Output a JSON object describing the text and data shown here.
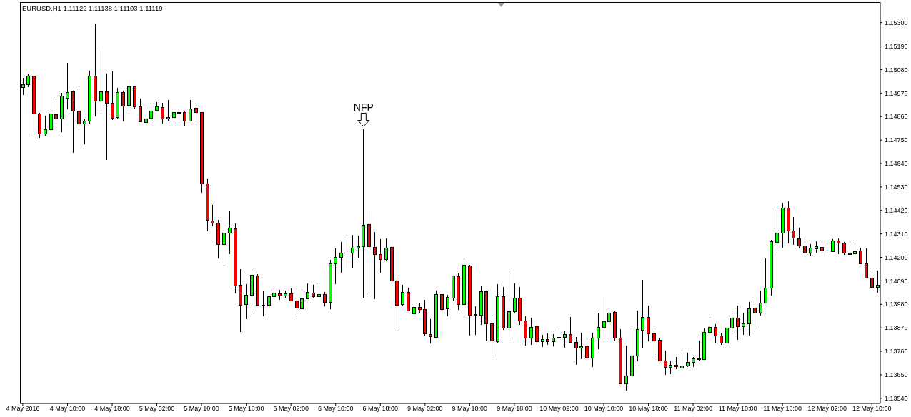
{
  "chart_data": {
    "type": "candlestick",
    "title": "EURUSD,H1 1.11122 1.11138 1.11103 1.11119",
    "categories": [
      "4 May 2016",
      null,
      null,
      null,
      null,
      null,
      null,
      null,
      "4 May 10:00",
      null,
      null,
      null,
      null,
      null,
      null,
      null,
      "4 May 18:00",
      null,
      null,
      null,
      null,
      null,
      null,
      null,
      "5 May 02:00",
      null,
      null,
      null,
      null,
      null,
      null,
      null,
      "5 May 10:00",
      null,
      null,
      null,
      null,
      null,
      null,
      null,
      "5 May 18:00",
      null,
      null,
      null,
      null,
      null,
      null,
      null,
      "6 May 02:00",
      null,
      null,
      null,
      null,
      null,
      null,
      null,
      "6 May 10:00",
      null,
      null,
      null,
      null,
      null,
      null,
      null,
      "6 May 18:00",
      null,
      null,
      null,
      null,
      null,
      null,
      null,
      "9 May 02:00",
      null,
      null,
      null,
      null,
      null,
      null,
      null,
      "9 May 10:00",
      null,
      null,
      null,
      null,
      null,
      null,
      null,
      "9 May 18:00",
      null,
      null,
      null,
      null,
      null,
      null,
      null,
      "10 May 02:00",
      null,
      null,
      null,
      null,
      null,
      null,
      null,
      "10 May 10:00",
      null,
      null,
      null,
      null,
      null,
      null,
      null,
      "10 May 18:00",
      null,
      null,
      null,
      null,
      null,
      null,
      null,
      "11 May 02:00",
      null,
      null,
      null,
      null,
      null,
      null,
      null,
      "11 May 10:00",
      null,
      null,
      null,
      null,
      null,
      null,
      null,
      "11 May 18:00",
      null,
      null,
      null,
      null,
      null,
      null,
      null,
      "12 May 02:00",
      null,
      null,
      null,
      null,
      null,
      null,
      null,
      "12 May 10:00",
      null
    ],
    "ohlc": [
      [
        1.14997,
        1.1504,
        1.14962,
        1.1501
      ],
      [
        1.1501,
        1.15057,
        1.14999,
        1.1505
      ],
      [
        1.1505,
        1.15085,
        1.14775,
        1.14873
      ],
      [
        1.14873,
        1.14876,
        1.14761,
        1.14779
      ],
      [
        1.14779,
        1.14864,
        1.14771,
        1.14799
      ],
      [
        1.14799,
        1.14884,
        1.14795,
        1.14873
      ],
      [
        1.1487,
        1.14931,
        1.14825,
        1.1485
      ],
      [
        1.1485,
        1.14971,
        1.14788,
        1.14957
      ],
      [
        1.14947,
        1.15111,
        1.14895,
        1.14973
      ],
      [
        1.14977,
        1.1498,
        1.14691,
        1.14886
      ],
      [
        1.14886,
        1.15,
        1.14798,
        1.14826
      ],
      [
        1.14826,
        1.14846,
        1.14731,
        1.1484
      ],
      [
        1.1484,
        1.15075,
        1.14828,
        1.1505
      ],
      [
        1.1505,
        1.15295,
        1.14862,
        1.14933
      ],
      [
        1.14933,
        1.15182,
        1.14875,
        1.14977
      ],
      [
        1.14977,
        1.15061,
        1.14658,
        1.14923
      ],
      [
        1.14923,
        1.15071,
        1.14845,
        1.14853
      ],
      [
        1.14856,
        1.14993,
        1.14852,
        1.14973
      ],
      [
        1.14973,
        1.1498,
        1.14838,
        1.1491
      ],
      [
        1.14913,
        1.1503,
        1.14885,
        1.15
      ],
      [
        1.15,
        1.15003,
        1.14898,
        1.14906
      ],
      [
        1.14906,
        1.14943,
        1.14836,
        1.14836
      ],
      [
        1.14833,
        1.14917,
        1.14833,
        1.1485
      ],
      [
        1.14853,
        1.14903,
        1.14841,
        1.14886
      ],
      [
        1.1489,
        1.14927,
        1.1489,
        1.14906
      ],
      [
        1.14903,
        1.14924,
        1.14828,
        1.1485
      ],
      [
        1.1485,
        1.14937,
        1.14841,
        1.14856
      ],
      [
        1.14856,
        1.14887,
        1.14828,
        1.1488
      ],
      [
        1.14878,
        1.14881,
        1.14841,
        1.14878
      ],
      [
        1.1488,
        1.14883,
        1.14818,
        1.14838
      ],
      [
        1.14838,
        1.14937,
        1.14838,
        1.14896
      ],
      [
        1.149,
        1.14913,
        1.14821,
        1.1488
      ],
      [
        1.1488,
        1.1488,
        1.14504,
        1.14545
      ],
      [
        1.14545,
        1.14569,
        1.14323,
        1.14373
      ],
      [
        1.14371,
        1.14446,
        1.14346,
        1.14361
      ],
      [
        1.14361,
        1.14375,
        1.14196,
        1.14261
      ],
      [
        1.14261,
        1.14321,
        1.14173,
        1.14314
      ],
      [
        1.14314,
        1.14416,
        1.14216,
        1.14338
      ],
      [
        1.14334,
        1.14358,
        1.14032,
        1.14067
      ],
      [
        1.1407,
        1.14145,
        1.13851,
        1.13977
      ],
      [
        1.1398,
        1.14075,
        1.13912,
        1.14023
      ],
      [
        1.14023,
        1.14145,
        1.13942,
        1.14117
      ],
      [
        1.14114,
        1.1412,
        1.13973,
        1.13977
      ],
      [
        1.13975,
        1.1404,
        1.13925,
        1.13975
      ],
      [
        1.13977,
        1.14033,
        1.13962,
        1.14017
      ],
      [
        1.14017,
        1.14054,
        1.14005,
        1.14033
      ],
      [
        1.1403,
        1.14047,
        1.14002,
        1.1402
      ],
      [
        1.1402,
        1.14043,
        1.1401,
        1.1403
      ],
      [
        1.1403,
        1.14054,
        1.13993,
        1.13997
      ],
      [
        1.13997,
        1.14054,
        1.1392,
        1.13963
      ],
      [
        1.1396,
        1.1405,
        1.13953,
        1.14007
      ],
      [
        1.14007,
        1.14077,
        1.14003,
        1.14037
      ],
      [
        1.14033,
        1.14071,
        1.14012,
        1.14017
      ],
      [
        1.14017,
        1.1409,
        1.14017,
        1.14027
      ],
      [
        1.14027,
        1.14037,
        1.13972,
        1.1399
      ],
      [
        1.1399,
        1.14187,
        1.13959,
        1.14171
      ],
      [
        1.14171,
        1.14241,
        1.14076,
        1.14201
      ],
      [
        1.14201,
        1.14271,
        1.14129,
        1.14221
      ],
      [
        1.14221,
        1.14304,
        1.14149,
        1.14221
      ],
      [
        1.14221,
        1.14304,
        1.14149,
        1.14244
      ],
      [
        1.14244,
        1.14301,
        1.14199,
        1.14251
      ],
      [
        1.14251,
        1.14799,
        1.14012,
        1.14351
      ],
      [
        1.14355,
        1.14416,
        1.14025,
        1.14251
      ],
      [
        1.14247,
        1.14318,
        1.14005,
        1.14214
      ],
      [
        1.14214,
        1.14284,
        1.14129,
        1.14191
      ],
      [
        1.14191,
        1.14288,
        1.14186,
        1.14244
      ],
      [
        1.14247,
        1.14281,
        1.1408,
        1.1409
      ],
      [
        1.1409,
        1.14104,
        1.13858,
        1.13977
      ],
      [
        1.1398,
        1.1407,
        1.1397,
        1.14037
      ],
      [
        1.14037,
        1.14057,
        1.1395,
        1.1395
      ],
      [
        1.13937,
        1.13977,
        1.1392,
        1.13967
      ],
      [
        1.13967,
        1.13987,
        1.13937,
        1.13957
      ],
      [
        1.13957,
        1.14,
        1.13833,
        1.13843
      ],
      [
        1.13839,
        1.1391,
        1.13796,
        1.13829
      ],
      [
        1.13826,
        1.14043,
        1.13826,
        1.14027
      ],
      [
        1.14027,
        1.14027,
        1.13937,
        1.13957
      ],
      [
        1.1396,
        1.14023,
        1.13923,
        1.14013
      ],
      [
        1.1401,
        1.14114,
        1.13999,
        1.14114
      ],
      [
        1.1411,
        1.14125,
        1.13955,
        1.1398
      ],
      [
        1.1398,
        1.14195,
        1.13918,
        1.14164
      ],
      [
        1.14161,
        1.14164,
        1.13835,
        1.1393
      ],
      [
        1.1393,
        1.13971,
        1.13838,
        1.1393
      ],
      [
        1.1393,
        1.14068,
        1.13885,
        1.1404
      ],
      [
        1.1404,
        1.14043,
        1.13808,
        1.1389
      ],
      [
        1.1389,
        1.1393,
        1.13741,
        1.13809
      ],
      [
        1.13806,
        1.14074,
        1.13799,
        1.14017
      ],
      [
        1.14017,
        1.1406,
        1.13862,
        1.1387
      ],
      [
        1.1387,
        1.14135,
        1.13821,
        1.13947
      ],
      [
        1.13947,
        1.14077,
        1.13937,
        1.1401
      ],
      [
        1.1401,
        1.1406,
        1.13885,
        1.13903
      ],
      [
        1.13903,
        1.13923,
        1.13788,
        1.13823
      ],
      [
        1.13823,
        1.13916,
        1.13791,
        1.13873
      ],
      [
        1.13876,
        1.13896,
        1.13791,
        1.13806
      ],
      [
        1.13806,
        1.13836,
        1.13781,
        1.13816
      ],
      [
        1.13816,
        1.13843,
        1.13791,
        1.13806
      ],
      [
        1.13806,
        1.13839,
        1.13785,
        1.13823
      ],
      [
        1.13826,
        1.13866,
        1.13818,
        1.13826
      ],
      [
        1.13826,
        1.13853,
        1.13778,
        1.13839
      ],
      [
        1.13839,
        1.1392,
        1.13803,
        1.13803
      ],
      [
        1.13803,
        1.13826,
        1.13698,
        1.13776
      ],
      [
        1.13776,
        1.13846,
        1.13724,
        1.13783
      ],
      [
        1.13783,
        1.13819,
        1.13724,
        1.13729
      ],
      [
        1.13729,
        1.13846,
        1.13688,
        1.13823
      ],
      [
        1.13823,
        1.13937,
        1.13771,
        1.13873
      ],
      [
        1.13873,
        1.14013,
        1.13805,
        1.139
      ],
      [
        1.139,
        1.13957,
        1.13818,
        1.1394
      ],
      [
        1.13943,
        1.13947,
        1.13811,
        1.13821
      ],
      [
        1.13823,
        1.13863,
        1.13609,
        1.13609
      ],
      [
        1.13609,
        1.13786,
        1.13577,
        1.13644
      ],
      [
        1.13645,
        1.13866,
        1.13642,
        1.13739
      ],
      [
        1.13739,
        1.1395,
        1.13712,
        1.13863
      ],
      [
        1.1386,
        1.14095,
        1.13773,
        1.1392
      ],
      [
        1.1392,
        1.13973,
        1.13806,
        1.13843
      ],
      [
        1.13843,
        1.13866,
        1.13742,
        1.13809
      ],
      [
        1.13813,
        1.13823,
        1.13716,
        1.13716
      ],
      [
        1.13716,
        1.13763,
        1.13649,
        1.13686
      ],
      [
        1.13686,
        1.13712,
        1.13652,
        1.13696
      ],
      [
        1.13696,
        1.13732,
        1.13676,
        1.13689
      ],
      [
        1.13682,
        1.13753,
        1.13679,
        1.13692
      ],
      [
        1.13692,
        1.13753,
        1.13686,
        1.13709
      ],
      [
        1.13709,
        1.13732,
        1.13686,
        1.13726
      ],
      [
        1.13724,
        1.13809,
        1.13716,
        1.13724
      ],
      [
        1.13722,
        1.13866,
        1.13719,
        1.1385
      ],
      [
        1.1385,
        1.1391,
        1.13833,
        1.13873
      ],
      [
        1.13873,
        1.13886,
        1.13799,
        1.13833
      ],
      [
        1.13833,
        1.13846,
        1.13789,
        1.13799
      ],
      [
        1.13799,
        1.13873,
        1.13796,
        1.1387
      ],
      [
        1.1387,
        1.13937,
        1.13851,
        1.13916
      ],
      [
        1.13916,
        1.13973,
        1.13815,
        1.13876
      ],
      [
        1.13876,
        1.1394,
        1.13838,
        1.1389
      ],
      [
        1.1389,
        1.1399,
        1.13835,
        1.1396
      ],
      [
        1.13963,
        1.13973,
        1.13873,
        1.1394
      ],
      [
        1.1394,
        1.14043,
        1.13926,
        1.13987
      ],
      [
        1.13987,
        1.14194,
        1.13987,
        1.14057
      ],
      [
        1.14057,
        1.14281,
        1.14022,
        1.14274
      ],
      [
        1.14271,
        1.14435,
        1.14217,
        1.14314
      ],
      [
        1.14314,
        1.14455,
        1.14244,
        1.14431
      ],
      [
        1.14431,
        1.14462,
        1.14264,
        1.14324
      ],
      [
        1.14324,
        1.14388,
        1.14258,
        1.14291
      ],
      [
        1.14288,
        1.14338,
        1.14241,
        1.14254
      ],
      [
        1.14254,
        1.14274,
        1.14207,
        1.14221
      ],
      [
        1.14221,
        1.14261,
        1.14207,
        1.14244
      ],
      [
        1.14241,
        1.14274,
        1.14221,
        1.14251
      ],
      [
        1.14247,
        1.14261,
        1.14217,
        1.14231
      ],
      [
        1.14231,
        1.14264,
        1.14217,
        1.14231
      ],
      [
        1.14227,
        1.14284,
        1.14227,
        1.14278
      ],
      [
        1.14278,
        1.14288,
        1.14214,
        1.14268
      ],
      [
        1.14268,
        1.14271,
        1.14211,
        1.14221
      ],
      [
        1.14221,
        1.14274,
        1.14214,
        1.14214
      ],
      [
        1.14217,
        1.14271,
        1.14211,
        1.14227
      ],
      [
        1.14231,
        1.14244,
        1.14171,
        1.14171
      ],
      [
        1.14171,
        1.14241,
        1.14104,
        1.14104
      ],
      [
        1.14104,
        1.14137,
        1.14047,
        1.1406
      ],
      [
        1.1406,
        1.14137,
        1.14033,
        1.1407
      ]
    ],
    "colors": [
      "#00ff00",
      "#00ff00",
      "#ff0000",
      "#ff0000",
      "#00ff00",
      "#00ff00",
      "#ff0000",
      "#00ff00",
      "#00ff00",
      "#ff0000",
      "#ff0000",
      "#00ff00",
      "#00ff00",
      "#ff0000",
      "#00ff00",
      "#ff0000",
      "#ff0000",
      "#00ff00",
      "#ff0000",
      "#00ff00",
      "#ff0000",
      "#ff0000",
      "#00ff00",
      "#00ff00",
      "#00ff00",
      "#ff0000",
      "#00ff00",
      "#00ff00",
      "#000000",
      "#ff0000",
      "#00ff00",
      "#ff0000",
      "#ff0000",
      "#ff0000",
      "#ff0000",
      "#ff0000",
      "#00ff00",
      "#00ff00",
      "#ff0000",
      "#ff0000",
      "#00ff00",
      "#00ff00",
      "#ff0000",
      "#000000",
      "#00ff00",
      "#00ff00",
      "#ff0000",
      "#00ff00",
      "#ff0000",
      "#ff0000",
      "#00ff00",
      "#00ff00",
      "#ff0000",
      "#00ff00",
      "#ff0000",
      "#00ff00",
      "#00ff00",
      "#00ff00",
      "#000000",
      "#00ff00",
      "#00ff00",
      "#00ff00",
      "#ff0000",
      "#ff0000",
      "#ff0000",
      "#00ff00",
      "#ff0000",
      "#ff0000",
      "#00ff00",
      "#ff0000",
      "#00ff00",
      "#ff0000",
      "#ff0000",
      "#ff0000",
      "#00ff00",
      "#ff0000",
      "#00ff00",
      "#00ff00",
      "#ff0000",
      "#00ff00",
      "#ff0000",
      "#000000",
      "#00ff00",
      "#ff0000",
      "#ff0000",
      "#00ff00",
      "#ff0000",
      "#00ff00",
      "#00ff00",
      "#ff0000",
      "#ff0000",
      "#00ff00",
      "#ff0000",
      "#00ff00",
      "#ff0000",
      "#00ff00",
      "#000000",
      "#00ff00",
      "#ff0000",
      "#ff0000",
      "#00ff00",
      "#ff0000",
      "#00ff00",
      "#00ff00",
      "#00ff00",
      "#00ff00",
      "#ff0000",
      "#ff0000",
      "#00ff00",
      "#00ff00",
      "#00ff00",
      "#00ff00",
      "#ff0000",
      "#ff0000",
      "#ff0000",
      "#ff0000",
      "#00ff00",
      "#ff0000",
      "#00ff00",
      "#00ff00",
      "#00ff00",
      "#000000",
      "#00ff00",
      "#00ff00",
      "#ff0000",
      "#ff0000",
      "#00ff00",
      "#00ff00",
      "#ff0000",
      "#00ff00",
      "#00ff00",
      "#ff0000",
      "#00ff00",
      "#00ff00",
      "#00ff00",
      "#00ff00",
      "#00ff00",
      "#ff0000",
      "#ff0000",
      "#ff0000",
      "#ff0000",
      "#00ff00",
      "#00ff00",
      "#ff0000",
      "#000000",
      "#00ff00",
      "#ff0000",
      "#ff0000",
      "#ff0000",
      "#00ff00",
      "#ff0000",
      "#ff0000",
      "#ff0000",
      "#00ff00"
    ],
    "ylim": [
      1.13516,
      1.15396
    ],
    "yticks": [
      {
        "value": 1.1354,
        "label": "1.13540"
      },
      {
        "value": 1.1365,
        "label": "1.13650"
      },
      {
        "value": 1.1376,
        "label": "1.13760"
      },
      {
        "value": 1.1387,
        "label": "1.13870"
      },
      {
        "value": 1.1398,
        "label": "1.13980"
      },
      {
        "value": 1.1409,
        "label": "1.14090"
      },
      {
        "value": 1.142,
        "label": "1.14200"
      },
      {
        "value": 1.1431,
        "label": "1.14310"
      },
      {
        "value": 1.1442,
        "label": "1.14420"
      },
      {
        "value": 1.1453,
        "label": "1.14530"
      },
      {
        "value": 1.1464,
        "label": "1.14640"
      },
      {
        "value": 1.1475,
        "label": "1.14750"
      },
      {
        "value": 1.1486,
        "label": "1.14860"
      },
      {
        "value": 1.1497,
        "label": "1.14970"
      },
      {
        "value": 1.1508,
        "label": "1.15080"
      },
      {
        "value": 1.1519,
        "label": "1.15190"
      },
      {
        "value": 1.153,
        "label": "1.15300"
      }
    ],
    "annotations": [
      {
        "text": "NFP",
        "y": 1.14799
      }
    ]
  }
}
